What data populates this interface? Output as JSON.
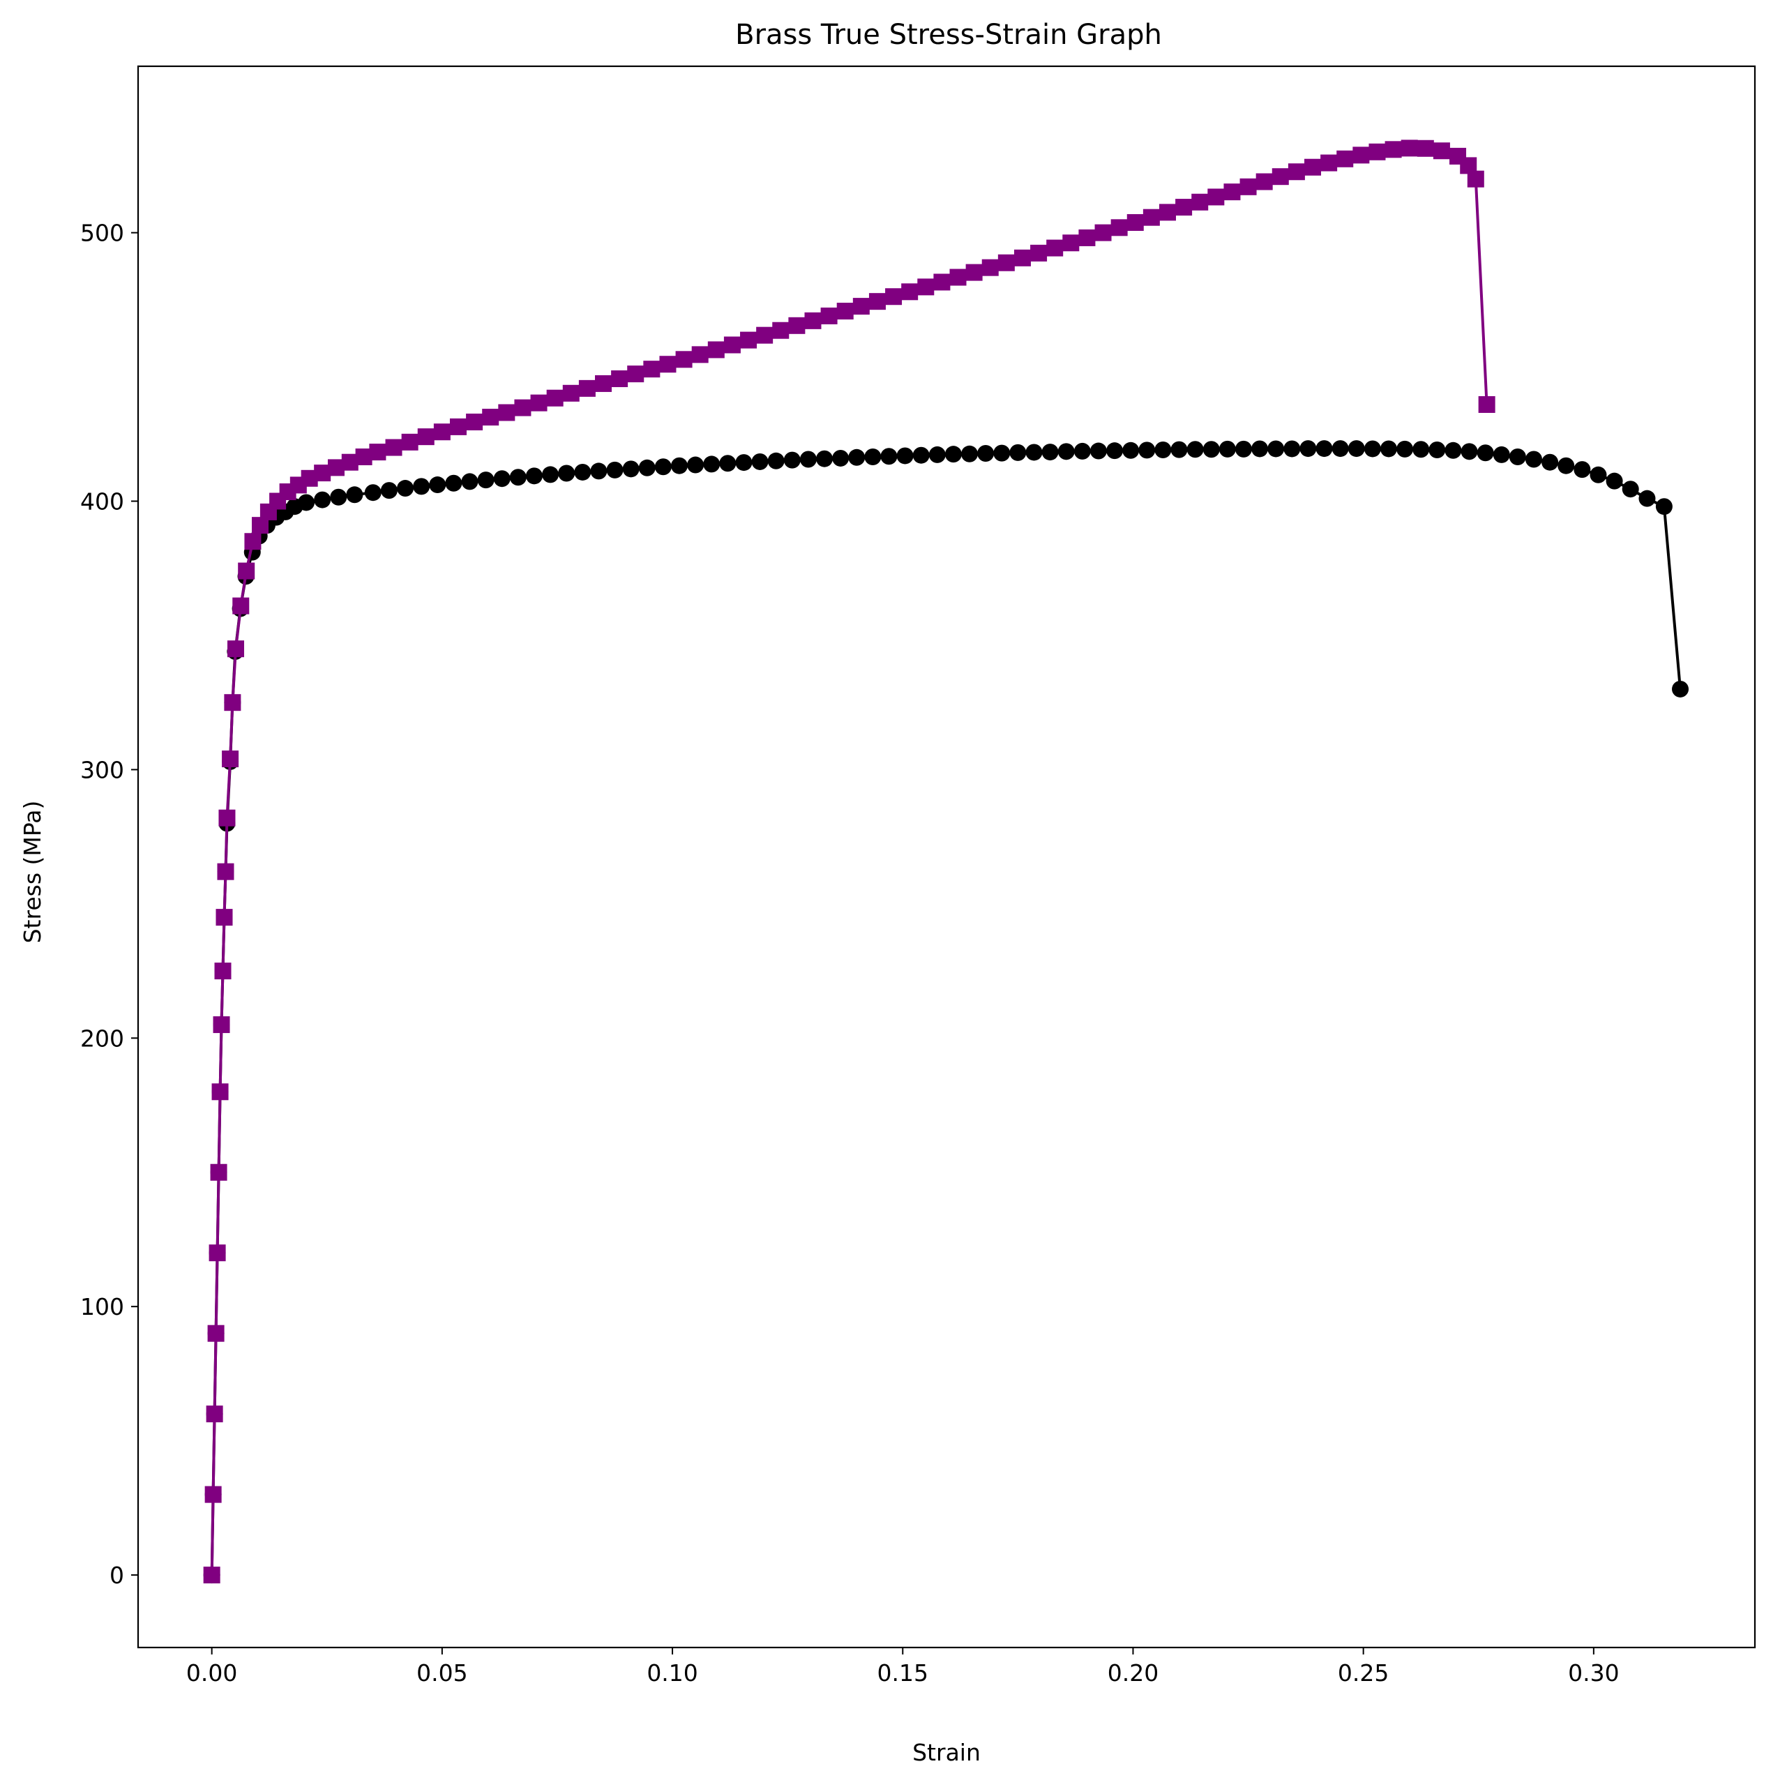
{
  "chart_data": {
    "type": "line",
    "title": "Brass True Stress-Strain Graph",
    "xlabel": "Strain",
    "ylabel": "Stress (MPa)",
    "xlim": [
      -0.016,
      0.335
    ],
    "ylim": [
      -27,
      562
    ],
    "xticks": [
      {
        "value": 0.0,
        "label": "0.00"
      },
      {
        "value": 0.05,
        "label": "0.05"
      },
      {
        "value": 0.1,
        "label": "0.10"
      },
      {
        "value": 0.15,
        "label": "0.15"
      },
      {
        "value": 0.2,
        "label": "0.20"
      },
      {
        "value": 0.25,
        "label": "0.25"
      },
      {
        "value": 0.3,
        "label": "0.30"
      }
    ],
    "yticks": [
      {
        "value": 0,
        "label": "0"
      },
      {
        "value": 100,
        "label": "100"
      },
      {
        "value": 200,
        "label": "200"
      },
      {
        "value": 300,
        "label": "300"
      },
      {
        "value": 400,
        "label": "400"
      },
      {
        "value": 500,
        "label": "500"
      }
    ],
    "grid": false,
    "series": [
      {
        "color": "#000000",
        "marker": "circle",
        "points": [
          [
            0.0,
            0
          ],
          [
            0.0003,
            30
          ],
          [
            0.0006,
            60
          ],
          [
            0.0009,
            90
          ],
          [
            0.0012,
            120
          ],
          [
            0.0015,
            150
          ],
          [
            0.0018,
            180
          ],
          [
            0.0021,
            205
          ],
          [
            0.0024,
            225
          ],
          [
            0.0027,
            245
          ],
          [
            0.003,
            262
          ],
          [
            0.0033,
            280
          ],
          [
            0.004,
            303
          ],
          [
            0.0045,
            325
          ],
          [
            0.0051,
            344
          ],
          [
            0.0062,
            360
          ],
          [
            0.0074,
            372
          ],
          [
            0.0088,
            381
          ],
          [
            0.0103,
            387
          ],
          [
            0.012,
            391
          ],
          [
            0.014,
            394
          ],
          [
            0.016,
            396
          ],
          [
            0.018,
            398
          ],
          [
            0.0205,
            399.5
          ],
          [
            0.024,
            400.5
          ],
          [
            0.0275,
            401.5
          ],
          [
            0.031,
            402.4
          ],
          [
            0.035,
            403.2
          ],
          [
            0.0385,
            404
          ],
          [
            0.042,
            404.8
          ],
          [
            0.0455,
            405.5
          ],
          [
            0.049,
            406.1
          ],
          [
            0.0525,
            406.7
          ],
          [
            0.056,
            407.3
          ],
          [
            0.0595,
            407.9
          ],
          [
            0.063,
            408.4
          ],
          [
            0.0665,
            408.9
          ],
          [
            0.07,
            409.4
          ],
          [
            0.0735,
            409.9
          ],
          [
            0.077,
            410.4
          ],
          [
            0.0805,
            410.8
          ],
          [
            0.084,
            411.2
          ],
          [
            0.0875,
            411.6
          ],
          [
            0.091,
            412
          ],
          [
            0.0945,
            412.4
          ],
          [
            0.098,
            412.8
          ],
          [
            0.1015,
            413.2
          ],
          [
            0.105,
            413.5
          ],
          [
            0.1085,
            413.8
          ],
          [
            0.112,
            414.1
          ],
          [
            0.1155,
            414.4
          ],
          [
            0.119,
            414.7
          ],
          [
            0.1225,
            415
          ],
          [
            0.126,
            415.3
          ],
          [
            0.1295,
            415.6
          ],
          [
            0.133,
            415.8
          ],
          [
            0.1365,
            416
          ],
          [
            0.14,
            416.3
          ],
          [
            0.1435,
            416.5
          ],
          [
            0.147,
            416.7
          ],
          [
            0.1505,
            416.9
          ],
          [
            0.154,
            417.1
          ],
          [
            0.1575,
            417.3
          ],
          [
            0.161,
            417.5
          ],
          [
            0.1645,
            417.6
          ],
          [
            0.168,
            417.8
          ],
          [
            0.1715,
            417.9
          ],
          [
            0.175,
            418.1
          ],
          [
            0.1785,
            418.2
          ],
          [
            0.182,
            418.3
          ],
          [
            0.1855,
            418.5
          ],
          [
            0.189,
            418.6
          ],
          [
            0.1925,
            418.7
          ],
          [
            0.196,
            418.8
          ],
          [
            0.1995,
            418.9
          ],
          [
            0.203,
            419
          ],
          [
            0.2065,
            419.1
          ],
          [
            0.21,
            419.2
          ],
          [
            0.2135,
            419.3
          ],
          [
            0.217,
            419.3
          ],
          [
            0.2205,
            419.4
          ],
          [
            0.224,
            419.4
          ],
          [
            0.2275,
            419.5
          ],
          [
            0.231,
            419.5
          ],
          [
            0.2345,
            419.5
          ],
          [
            0.238,
            419.6
          ],
          [
            0.2415,
            419.6
          ],
          [
            0.245,
            419.6
          ],
          [
            0.2485,
            419.6
          ],
          [
            0.252,
            419.5
          ],
          [
            0.2555,
            419.5
          ],
          [
            0.259,
            419.4
          ],
          [
            0.2625,
            419.3
          ],
          [
            0.266,
            419.1
          ],
          [
            0.2695,
            418.9
          ],
          [
            0.273,
            418.5
          ],
          [
            0.2765,
            418
          ],
          [
            0.28,
            417.3
          ],
          [
            0.2835,
            416.5
          ],
          [
            0.287,
            415.6
          ],
          [
            0.2905,
            414.5
          ],
          [
            0.294,
            413.2
          ],
          [
            0.2975,
            411.8
          ],
          [
            0.301,
            409.8
          ],
          [
            0.3045,
            407.5
          ],
          [
            0.308,
            404.5
          ],
          [
            0.3116,
            401
          ],
          [
            0.3153,
            398
          ],
          [
            0.3188,
            330
          ]
        ]
      },
      {
        "color": "#800080",
        "marker": "square",
        "points": [
          [
            0.0,
            0
          ],
          [
            0.0003,
            30
          ],
          [
            0.0006,
            60
          ],
          [
            0.0009,
            90
          ],
          [
            0.0012,
            120
          ],
          [
            0.0015,
            150
          ],
          [
            0.0018,
            180
          ],
          [
            0.0021,
            205
          ],
          [
            0.0024,
            225
          ],
          [
            0.0027,
            245
          ],
          [
            0.003,
            262
          ],
          [
            0.0033,
            282
          ],
          [
            0.004,
            304
          ],
          [
            0.0045,
            325
          ],
          [
            0.0052,
            345
          ],
          [
            0.0063,
            361
          ],
          [
            0.0075,
            374
          ],
          [
            0.0089,
            385
          ],
          [
            0.0105,
            391
          ],
          [
            0.0123,
            396
          ],
          [
            0.0143,
            400
          ],
          [
            0.0165,
            403.5
          ],
          [
            0.0188,
            406
          ],
          [
            0.0212,
            408.5
          ],
          [
            0.024,
            410.5
          ],
          [
            0.027,
            412.5
          ],
          [
            0.03,
            414.5
          ],
          [
            0.033,
            416.5
          ],
          [
            0.036,
            418.3
          ],
          [
            0.0395,
            420
          ],
          [
            0.043,
            422
          ],
          [
            0.0465,
            424
          ],
          [
            0.05,
            425.8
          ],
          [
            0.0535,
            427.7
          ],
          [
            0.057,
            429.5
          ],
          [
            0.0605,
            431.3
          ],
          [
            0.064,
            433
          ],
          [
            0.0675,
            434.8
          ],
          [
            0.071,
            436.6
          ],
          [
            0.0745,
            438.4
          ],
          [
            0.078,
            440.2
          ],
          [
            0.0815,
            442
          ],
          [
            0.085,
            443.8
          ],
          [
            0.0885,
            445.6
          ],
          [
            0.092,
            447.4
          ],
          [
            0.0955,
            449.2
          ],
          [
            0.099,
            451
          ],
          [
            0.1025,
            452.8
          ],
          [
            0.106,
            454.6
          ],
          [
            0.1095,
            456.4
          ],
          [
            0.113,
            458.2
          ],
          [
            0.1165,
            460
          ],
          [
            0.12,
            461.8
          ],
          [
            0.1235,
            463.6
          ],
          [
            0.127,
            465.4
          ],
          [
            0.1305,
            467.2
          ],
          [
            0.134,
            469
          ],
          [
            0.1375,
            470.8
          ],
          [
            0.141,
            472.6
          ],
          [
            0.1445,
            474.4
          ],
          [
            0.148,
            476.2
          ],
          [
            0.1515,
            478
          ],
          [
            0.155,
            479.8
          ],
          [
            0.1585,
            481.6
          ],
          [
            0.162,
            483.4
          ],
          [
            0.1655,
            485.2
          ],
          [
            0.169,
            487
          ],
          [
            0.1725,
            488.8
          ],
          [
            0.176,
            490.6
          ],
          [
            0.1795,
            492.4
          ],
          [
            0.183,
            494.3
          ],
          [
            0.1865,
            496.2
          ],
          [
            0.19,
            498.1
          ],
          [
            0.1935,
            500
          ],
          [
            0.197,
            501.9
          ],
          [
            0.2005,
            503.8
          ],
          [
            0.204,
            505.7
          ],
          [
            0.2075,
            507.6
          ],
          [
            0.211,
            509.5
          ],
          [
            0.2145,
            511.4
          ],
          [
            0.218,
            513.3
          ],
          [
            0.2215,
            515.2
          ],
          [
            0.225,
            517.1
          ],
          [
            0.2285,
            519
          ],
          [
            0.232,
            520.9
          ],
          [
            0.2355,
            522.7
          ],
          [
            0.239,
            524.4
          ],
          [
            0.2425,
            526
          ],
          [
            0.246,
            527.5
          ],
          [
            0.2495,
            528.9
          ],
          [
            0.253,
            530.1
          ],
          [
            0.2565,
            531
          ],
          [
            0.26,
            531.5
          ],
          [
            0.2635,
            531.4
          ],
          [
            0.267,
            530.5
          ],
          [
            0.2705,
            528.5
          ],
          [
            0.2728,
            525
          ],
          [
            0.2744,
            520
          ],
          [
            0.2768,
            436
          ]
        ]
      }
    ]
  }
}
